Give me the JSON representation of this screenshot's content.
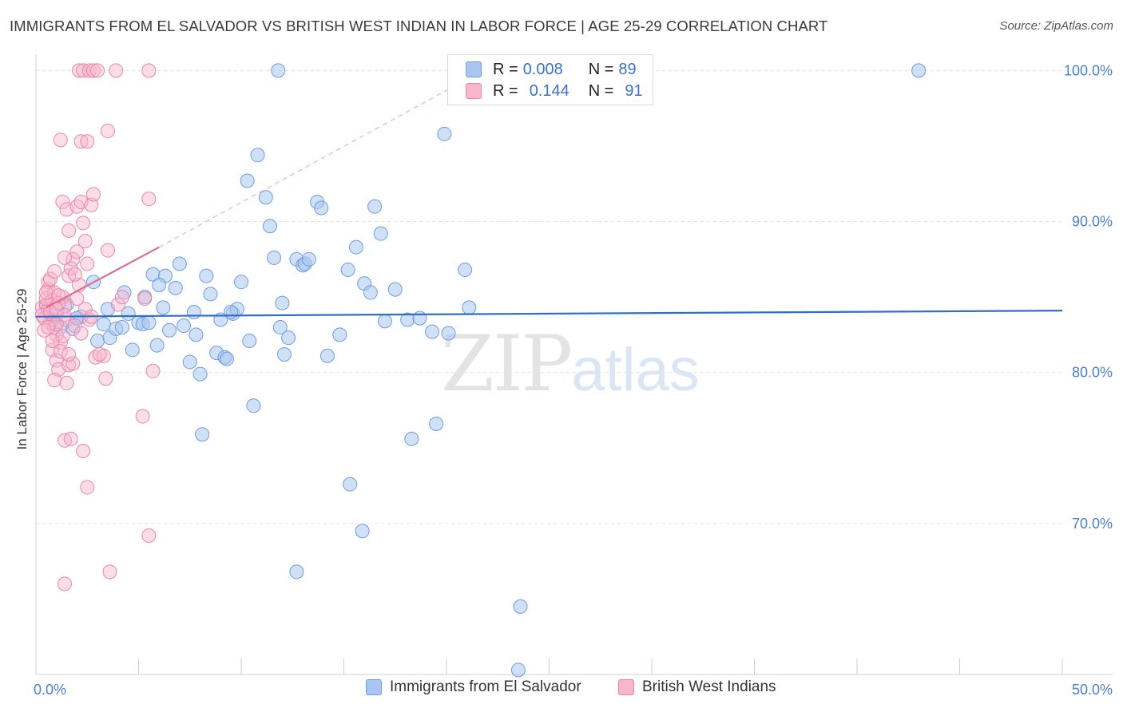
{
  "title": "IMMIGRANTS FROM EL SALVADOR VS BRITISH WEST INDIAN IN LABOR FORCE | AGE 25-29 CORRELATION CHART",
  "source": "Source: ZipAtlas.com",
  "watermark": {
    "zip": "ZIP",
    "atlas": "atlas"
  },
  "legend": {
    "series1": {
      "r_label": "R =",
      "r_value": "0.008",
      "n_label": "N =",
      "n_value": "89"
    },
    "series2": {
      "r_label": "R =",
      "r_value": "0.144",
      "n_label": "N =",
      "n_value": "91"
    }
  },
  "colors": {
    "blue_fill": "#aac6f0",
    "blue_stroke": "#6d9ee0",
    "blue_line": "#2f6fcc",
    "pink_fill": "#f7b6cb",
    "pink_stroke": "#ec86a8",
    "pink_line": "#e06b95",
    "grid": "#e4e4e4",
    "tick": "#4a7fd0"
  },
  "chart_data": {
    "type": "scatter",
    "title": "IMMIGRANTS FROM EL SALVADOR VS BRITISH WEST INDIAN IN LABOR FORCE | AGE 25-29 CORRELATION CHART",
    "xlabel": "",
    "ylabel": "In Labor Force | Age 25-29",
    "xlim": [
      0,
      50
    ],
    "ylim": [
      60,
      101.5
    ],
    "x_tick_labels": [
      "0.0%",
      "50.0%"
    ],
    "y_ticks": [
      70,
      80,
      90,
      100
    ],
    "y_tick_labels": [
      "70.0%",
      "80.0%",
      "90.0%",
      "100.0%"
    ],
    "grid": true,
    "legend_position": "top-center",
    "series": [
      {
        "name": "Immigrants from El Salvador",
        "color": "#aac6f0",
        "trend": {
          "x": [
            0,
            50
          ],
          "y": [
            83.7,
            84.1
          ]
        },
        "points": [
          [
            0.5,
            84.4
          ],
          [
            0.8,
            83.5
          ],
          [
            1.0,
            83.8
          ],
          [
            1.2,
            83.0
          ],
          [
            1.5,
            84.5
          ],
          [
            1.8,
            82.9
          ],
          [
            2.2,
            83.7
          ],
          [
            2.8,
            86.0
          ],
          [
            3.0,
            82.1
          ],
          [
            3.3,
            83.2
          ],
          [
            3.6,
            82.3
          ],
          [
            3.9,
            82.9
          ],
          [
            4.2,
            83.0
          ],
          [
            4.3,
            85.3
          ],
          [
            4.5,
            83.9
          ],
          [
            4.7,
            81.5
          ],
          [
            5.0,
            83.3
          ],
          [
            5.2,
            83.2
          ],
          [
            5.3,
            85.0
          ],
          [
            5.5,
            83.3
          ],
          [
            5.7,
            86.5
          ],
          [
            5.9,
            81.8
          ],
          [
            6.2,
            84.3
          ],
          [
            6.3,
            86.4
          ],
          [
            6.5,
            82.8
          ],
          [
            6.8,
            85.6
          ],
          [
            7.0,
            87.2
          ],
          [
            7.2,
            83.1
          ],
          [
            7.5,
            80.7
          ],
          [
            7.7,
            84.0
          ],
          [
            8.0,
            79.9
          ],
          [
            8.1,
            75.9
          ],
          [
            8.3,
            86.4
          ],
          [
            8.5,
            85.2
          ],
          [
            8.8,
            81.3
          ],
          [
            9.0,
            83.5
          ],
          [
            9.2,
            81.0
          ],
          [
            9.3,
            80.9
          ],
          [
            9.6,
            83.9
          ],
          [
            9.8,
            84.2
          ],
          [
            10.0,
            86.0
          ],
          [
            10.3,
            92.7
          ],
          [
            10.4,
            82.1
          ],
          [
            10.6,
            77.8
          ],
          [
            10.8,
            94.4
          ],
          [
            11.2,
            91.6
          ],
          [
            11.4,
            89.7
          ],
          [
            11.6,
            87.6
          ],
          [
            11.9,
            83.0
          ],
          [
            12.1,
            81.2
          ],
          [
            12.3,
            82.3
          ],
          [
            11.8,
            100
          ],
          [
            12.7,
            87.5
          ],
          [
            13.0,
            87.1
          ],
          [
            13.1,
            87.2
          ],
          [
            13.3,
            87.5
          ],
          [
            13.7,
            91.3
          ],
          [
            13.9,
            90.9
          ],
          [
            14.2,
            81.1
          ],
          [
            14.8,
            82.5
          ],
          [
            15.2,
            86.8
          ],
          [
            15.6,
            88.3
          ],
          [
            16.0,
            85.9
          ],
          [
            16.3,
            85.3
          ],
          [
            16.5,
            91.0
          ],
          [
            16.8,
            89.2
          ],
          [
            15.3,
            72.6
          ],
          [
            15.9,
            69.5
          ],
          [
            12.7,
            66.8
          ],
          [
            17.5,
            85.5
          ],
          [
            18.1,
            83.5
          ],
          [
            18.3,
            75.6
          ],
          [
            18.7,
            83.6
          ],
          [
            19.3,
            82.7
          ],
          [
            19.5,
            76.6
          ],
          [
            19.9,
            95.8
          ],
          [
            20.1,
            82.6
          ],
          [
            21.1,
            84.3
          ],
          [
            20.9,
            86.8
          ],
          [
            23.6,
            64.5
          ],
          [
            23.5,
            60.3
          ],
          [
            43,
            100
          ],
          [
            17.0,
            83.4
          ],
          [
            9.5,
            84.0
          ],
          [
            2.0,
            83.6
          ],
          [
            3.5,
            84.2
          ],
          [
            6.0,
            85.8
          ],
          [
            7.8,
            82.5
          ],
          [
            12.0,
            84.6
          ]
        ]
      },
      {
        "name": "British West Indians",
        "color": "#f7b6cb",
        "trend_solid": {
          "x": [
            0.5,
            6.0
          ],
          "y": [
            84.3,
            88.3
          ]
        },
        "trend_dashed": {
          "x": [
            6.0,
            21.5
          ],
          "y": [
            88.3,
            99.8
          ]
        },
        "points": [
          [
            0.3,
            84.3
          ],
          [
            0.4,
            83.6
          ],
          [
            0.5,
            84.5
          ],
          [
            0.6,
            85.5
          ],
          [
            0.6,
            84.2
          ],
          [
            0.7,
            83.3
          ],
          [
            0.8,
            84.8
          ],
          [
            0.9,
            83.0
          ],
          [
            1.0,
            82.5
          ],
          [
            0.6,
            86.0
          ],
          [
            0.8,
            81.5
          ],
          [
            1.0,
            80.8
          ],
          [
            1.1,
            80.2
          ],
          [
            0.9,
            79.5
          ],
          [
            1.2,
            82.0
          ],
          [
            1.3,
            85.0
          ],
          [
            1.4,
            84.4
          ],
          [
            1.5,
            83.5
          ],
          [
            1.6,
            86.4
          ],
          [
            1.7,
            86.9
          ],
          [
            1.8,
            87.5
          ],
          [
            2.0,
            88.0
          ],
          [
            1.4,
            87.6
          ],
          [
            1.3,
            91.3
          ],
          [
            1.5,
            90.8
          ],
          [
            1.6,
            89.4
          ],
          [
            1.2,
            95.4
          ],
          [
            2.0,
            91.0
          ],
          [
            2.2,
            91.3
          ],
          [
            2.3,
            89.9
          ],
          [
            2.4,
            88.7
          ],
          [
            2.5,
            87.2
          ],
          [
            2.2,
            95.3
          ],
          [
            2.5,
            95.3
          ],
          [
            2.7,
            91.1
          ],
          [
            2.8,
            91.8
          ],
          [
            2.1,
            85.8
          ],
          [
            2.4,
            84.2
          ],
          [
            2.6,
            83.5
          ],
          [
            2.9,
            81.0
          ],
          [
            1.6,
            80.5
          ],
          [
            1.5,
            79.3
          ],
          [
            1.4,
            75.5
          ],
          [
            1.7,
            75.6
          ],
          [
            2.3,
            74.8
          ],
          [
            2.5,
            72.4
          ],
          [
            1.4,
            66.0
          ],
          [
            3.3,
            81.1
          ],
          [
            3.5,
            96.0
          ],
          [
            3.5,
            88.1
          ],
          [
            3.4,
            79.6
          ],
          [
            4.0,
            84.5
          ],
          [
            4.2,
            85.0
          ],
          [
            5.2,
            77.1
          ],
          [
            5.5,
            69.2
          ],
          [
            3.6,
            66.8
          ],
          [
            5.3,
            84.9
          ],
          [
            5.5,
            91.5
          ],
          [
            5.7,
            80.1
          ],
          [
            2.1,
            100
          ],
          [
            2.3,
            100
          ],
          [
            2.6,
            100
          ],
          [
            2.8,
            100
          ],
          [
            3.0,
            100
          ],
          [
            3.9,
            100
          ],
          [
            5.5,
            100
          ],
          [
            0.3,
            83.8
          ],
          [
            0.4,
            82.8
          ],
          [
            0.5,
            84.9
          ],
          [
            0.7,
            86.2
          ],
          [
            0.9,
            85.3
          ],
          [
            1.0,
            83.2
          ],
          [
            1.1,
            84.6
          ],
          [
            1.2,
            81.4
          ],
          [
            1.3,
            82.4
          ],
          [
            1.8,
            80.6
          ],
          [
            1.9,
            83.1
          ],
          [
            2.0,
            84.9
          ],
          [
            0.5,
            85.3
          ],
          [
            0.7,
            84.0
          ],
          [
            1.6,
            81.2
          ],
          [
            0.8,
            82.1
          ],
          [
            1.9,
            86.5
          ],
          [
            1.0,
            84.2
          ],
          [
            0.6,
            83.0
          ],
          [
            1.4,
            83.8
          ],
          [
            2.7,
            83.7
          ],
          [
            3.1,
            81.2
          ],
          [
            2.2,
            82.6
          ],
          [
            1.1,
            85.1
          ],
          [
            0.9,
            86.7
          ]
        ]
      }
    ]
  },
  "bottom_legend": {
    "series1": "Immigrants from El Salvador",
    "series2": "British West Indians"
  }
}
